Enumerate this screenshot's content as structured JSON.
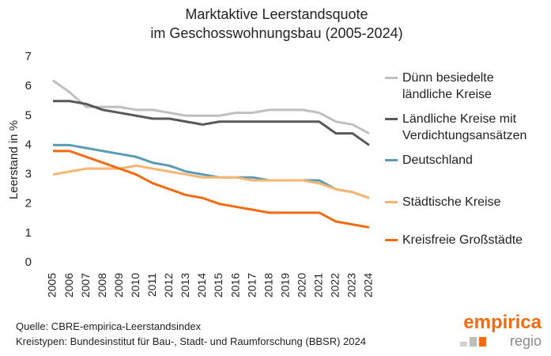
{
  "chart_data": {
    "type": "line",
    "title": [
      "Marktaktive Leerstandsquote",
      "im Geschosswohnungsbau (2005-2024)"
    ],
    "y_label": "Leerstand in %",
    "x": [
      2005,
      2006,
      2007,
      2008,
      2009,
      2010,
      2011,
      2012,
      2013,
      2014,
      2015,
      2016,
      2017,
      2018,
      2019,
      2020,
      2021,
      2022,
      2023,
      2024
    ],
    "ylim": [
      0,
      7
    ],
    "yticks": [
      0,
      1,
      2,
      3,
      4,
      5,
      6,
      7
    ],
    "grid": false,
    "series": [
      {
        "name": "Dünn besiedelte ländliche Kreise",
        "color": "#bfbfbf",
        "values": [
          6.2,
          5.8,
          5.3,
          5.3,
          5.3,
          5.2,
          5.2,
          5.1,
          5.0,
          5.0,
          5.0,
          5.1,
          5.1,
          5.2,
          5.2,
          5.2,
          5.1,
          4.8,
          4.7,
          4.4
        ]
      },
      {
        "name": "Ländliche Kreise mit Verdichtungsansätzen",
        "color": "#595959",
        "values": [
          5.5,
          5.5,
          5.4,
          5.2,
          5.1,
          5.0,
          4.9,
          4.9,
          4.8,
          4.7,
          4.8,
          4.8,
          4.8,
          4.8,
          4.8,
          4.8,
          4.8,
          4.4,
          4.4,
          4.0
        ]
      },
      {
        "name": "Deutschland",
        "color": "#5b9bb4",
        "values": [
          4.0,
          4.0,
          3.9,
          3.8,
          3.7,
          3.6,
          3.4,
          3.3,
          3.1,
          3.0,
          2.9,
          2.9,
          2.9,
          2.8,
          2.8,
          2.8,
          2.8,
          2.5,
          2.4,
          2.2
        ]
      },
      {
        "name": "Städtische Kreise",
        "color": "#f9b574",
        "values": [
          3.0,
          3.1,
          3.2,
          3.2,
          3.2,
          3.3,
          3.2,
          3.1,
          3.0,
          2.9,
          2.9,
          2.9,
          2.8,
          2.8,
          2.8,
          2.8,
          2.7,
          2.5,
          2.4,
          2.2
        ]
      },
      {
        "name": "Kreisfreie Großstädte",
        "color": "#f26b10",
        "values": [
          3.8,
          3.8,
          3.6,
          3.4,
          3.2,
          3.0,
          2.7,
          2.5,
          2.3,
          2.2,
          2.0,
          1.9,
          1.8,
          1.7,
          1.7,
          1.7,
          1.7,
          1.4,
          1.3,
          1.2
        ]
      }
    ]
  },
  "source": [
    "Quelle: CBRE-empirica-Leerstandsindex",
    "Kreistypen: Bundesinstitut für Bau-, Stadt- und Raumforschung (BBSR) 2024"
  ],
  "logo": {
    "name": "empirica",
    "sub": "regio"
  }
}
